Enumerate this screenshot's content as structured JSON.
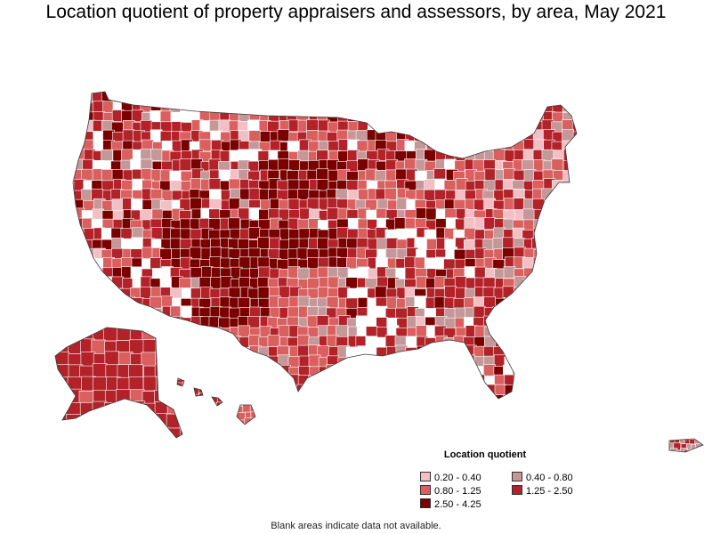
{
  "title": "Location quotient of property appraisers and assessors, by area, May 2021",
  "legend": {
    "title": "Location quotient",
    "items": [
      {
        "label": "0.20 - 0.40",
        "color": "#f2bfc4"
      },
      {
        "label": "0.40 - 0.80",
        "color": "#c49898"
      },
      {
        "label": "0.80 - 1.25",
        "color": "#d9605f"
      },
      {
        "label": "1.25 - 2.50",
        "color": "#b22228"
      },
      {
        "label": "2.50 - 4.25",
        "color": "#7a0000"
      }
    ]
  },
  "footnote": "Blank areas indicate data not available.",
  "colors": {
    "border": "#ffffff",
    "outline": "#3a3a3a",
    "blank": "#ffffff"
  }
}
